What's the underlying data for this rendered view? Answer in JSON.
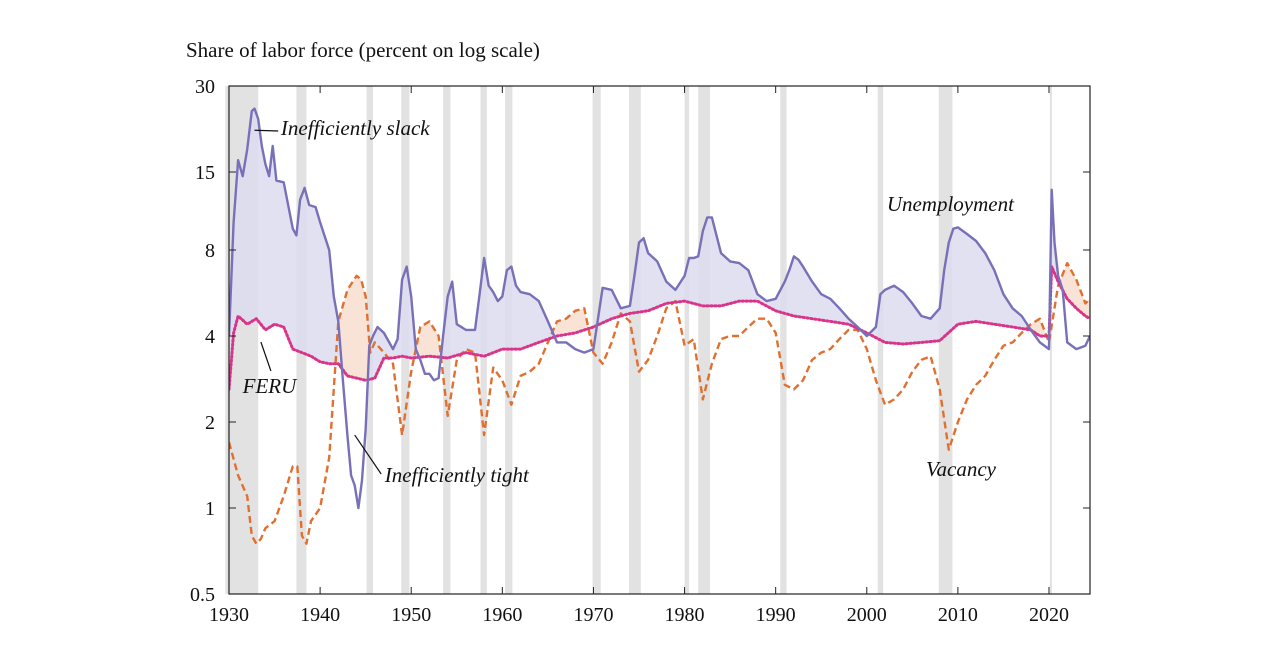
{
  "chart_data": {
    "type": "line",
    "ylabel": "Share of labor force (percent on log scale)",
    "y_scale": "log",
    "ylim": [
      0.5,
      30
    ],
    "xlim": [
      1930,
      2024.5
    ],
    "y_ticks": [
      0.5,
      1,
      2,
      4,
      8,
      15,
      30
    ],
    "x_ticks": [
      1930,
      1940,
      1950,
      1960,
      1970,
      1980,
      1990,
      2000,
      2010,
      2020
    ],
    "recessions": [
      [
        1929.6,
        1933.2
      ],
      [
        1937.4,
        1938.5
      ],
      [
        1945.1,
        1945.8
      ],
      [
        1948.9,
        1949.8
      ],
      [
        1953.5,
        1954.3
      ],
      [
        1957.6,
        1958.3
      ],
      [
        1960.3,
        1961.1
      ],
      [
        1969.9,
        1970.8
      ],
      [
        1973.9,
        1975.2
      ],
      [
        1980.0,
        1980.5
      ],
      [
        1981.5,
        1982.8
      ],
      [
        1990.5,
        1991.2
      ],
      [
        2001.2,
        2001.8
      ],
      [
        2007.9,
        2009.4
      ],
      [
        2020.1,
        2020.3
      ]
    ],
    "annotations": [
      {
        "text": "Inefficiently slack",
        "points_to": [
          1932.8,
          21
        ]
      },
      {
        "text": "Inefficiently tight",
        "points_to": [
          1943.8,
          1.8
        ]
      },
      {
        "text": "FERU",
        "points_to": [
          1933.5,
          4.0
        ]
      },
      {
        "text": "Unemployment",
        "points_to": null
      },
      {
        "text": "Vacancy",
        "points_to": null
      }
    ],
    "series": [
      {
        "name": "Unemployment",
        "color": "#7870b8",
        "style": "solid",
        "x": [
          1930,
          1930.5,
          1931,
          1931.5,
          1932,
          1932.5,
          1932.8,
          1933.2,
          1933.6,
          1934,
          1934.4,
          1934.8,
          1935.2,
          1936,
          1937,
          1937.4,
          1937.8,
          1938.3,
          1938.8,
          1939.5,
          1940,
          1941,
          1941.5,
          1942,
          1942.5,
          1943,
          1943.4,
          1943.8,
          1944.2,
          1944.6,
          1945,
          1945.4,
          1945.8,
          1946.3,
          1947,
          1948,
          1948.5,
          1949,
          1949.5,
          1950,
          1950.5,
          1951,
          1951.5,
          1952,
          1952.5,
          1953,
          1953.5,
          1954,
          1954.5,
          1955,
          1956,
          1957,
          1957.5,
          1958,
          1958.5,
          1959,
          1959.5,
          1960,
          1960.5,
          1961,
          1961.5,
          1962,
          1963,
          1964,
          1965,
          1966,
          1967,
          1968,
          1969,
          1970,
          1970.5,
          1971,
          1972,
          1973,
          1974,
          1974.5,
          1975,
          1975.5,
          1976,
          1977,
          1978,
          1979,
          1980,
          1980.5,
          1981,
          1981.5,
          1982,
          1982.5,
          1983,
          1984,
          1985,
          1986,
          1987,
          1988,
          1989,
          1990,
          1991,
          1991.5,
          1992,
          1992.5,
          1993,
          1994,
          1995,
          1996,
          1997,
          1998,
          1999,
          2000,
          2001,
          2001.5,
          2002,
          2003,
          2004,
          2005,
          2006,
          2007,
          2008,
          2008.5,
          2009,
          2009.5,
          2010,
          2011,
          2012,
          2013,
          2014,
          2015,
          2016,
          2017,
          2018,
          2019,
          2020,
          2020.3,
          2020.6,
          2021,
          2021.5,
          2022,
          2023,
          2024,
          2024.5
        ],
        "y": [
          4.0,
          10.0,
          16.5,
          14.5,
          18.0,
          24.5,
          25.0,
          23.0,
          18.5,
          16.0,
          14.5,
          18.5,
          14.0,
          13.8,
          9.5,
          9.0,
          12.0,
          13.2,
          11.5,
          11.3,
          10.0,
          8.0,
          5.5,
          4.5,
          2.8,
          1.8,
          1.3,
          1.2,
          1.0,
          1.25,
          1.9,
          3.7,
          4.0,
          4.3,
          4.1,
          3.6,
          3.9,
          6.3,
          7.0,
          5.5,
          3.6,
          3.3,
          2.95,
          2.95,
          2.8,
          2.85,
          4.0,
          5.5,
          6.2,
          4.4,
          4.2,
          4.2,
          5.6,
          7.5,
          6.0,
          5.7,
          5.3,
          5.5,
          6.8,
          7.0,
          6.0,
          5.7,
          5.6,
          5.3,
          4.5,
          3.8,
          3.8,
          3.6,
          3.5,
          3.6,
          4.6,
          5.9,
          5.8,
          5.0,
          5.1,
          6.5,
          8.5,
          8.8,
          7.8,
          7.3,
          6.2,
          5.8,
          6.5,
          7.5,
          7.5,
          7.6,
          9.3,
          10.4,
          10.4,
          7.8,
          7.3,
          7.2,
          6.8,
          5.6,
          5.3,
          5.4,
          6.2,
          6.8,
          7.6,
          7.4,
          7.0,
          6.2,
          5.6,
          5.4,
          5.0,
          4.6,
          4.3,
          4.0,
          4.3,
          5.6,
          5.8,
          6.0,
          5.7,
          5.2,
          4.7,
          4.6,
          5.0,
          6.8,
          8.5,
          9.5,
          9.6,
          9.1,
          8.6,
          7.8,
          6.8,
          5.6,
          5.0,
          4.7,
          4.2,
          3.8,
          3.6,
          13.0,
          8.5,
          6.5,
          5.8,
          3.8,
          3.6,
          3.7,
          4.0
        ]
      },
      {
        "name": "FERU",
        "color": "#d8348a",
        "style": "dotted",
        "x": [
          1930,
          1930.5,
          1931,
          1932,
          1933,
          1934,
          1935,
          1936,
          1937,
          1938,
          1939,
          1940,
          1941,
          1942,
          1943,
          1944,
          1945,
          1946,
          1947,
          1948,
          1949,
          1950,
          1952,
          1954,
          1956,
          1958,
          1960,
          1962,
          1964,
          1966,
          1968,
          1970,
          1972,
          1974,
          1976,
          1978,
          1980,
          1982,
          1984,
          1986,
          1988,
          1990,
          1992,
          1994,
          1996,
          1998,
          2000,
          2002,
          2004,
          2006,
          2008,
          2010,
          2012,
          2014,
          2016,
          2018,
          2019,
          2020,
          2020.3,
          2021,
          2022,
          2023,
          2024,
          2024.5
        ],
        "y": [
          2.6,
          4.1,
          4.7,
          4.4,
          4.6,
          4.2,
          4.4,
          4.3,
          3.6,
          3.5,
          3.4,
          3.25,
          3.2,
          3.2,
          2.9,
          2.85,
          2.8,
          2.85,
          3.35,
          3.35,
          3.4,
          3.35,
          3.4,
          3.35,
          3.5,
          3.4,
          3.6,
          3.6,
          3.8,
          4.0,
          4.1,
          4.3,
          4.6,
          4.8,
          4.9,
          5.2,
          5.3,
          5.1,
          5.1,
          5.3,
          5.3,
          4.9,
          4.7,
          4.6,
          4.5,
          4.4,
          4.1,
          3.8,
          3.75,
          3.8,
          3.85,
          4.4,
          4.5,
          4.4,
          4.3,
          4.2,
          4.0,
          4.0,
          7.0,
          6.2,
          5.4,
          5.0,
          4.7,
          4.6
        ]
      },
      {
        "name": "Vacancy",
        "color": "#e07030",
        "style": "dashed",
        "x": [
          1930,
          1931,
          1932,
          1932.5,
          1933,
          1933.5,
          1934,
          1935,
          1936,
          1937,
          1937.5,
          1938,
          1938.5,
          1939,
          1940,
          1941,
          1942,
          1943,
          1944,
          1944.5,
          1945,
          1945.5,
          1946,
          1947,
          1948,
          1949,
          1950,
          1951,
          1952,
          1953,
          1954,
          1955,
          1956,
          1957,
          1958,
          1959,
          1960,
          1961,
          1962,
          1963,
          1964,
          1965,
          1966,
          1967,
          1968,
          1969,
          1970,
          1971,
          1972,
          1973,
          1974,
          1975,
          1976,
          1977,
          1978,
          1979,
          1980,
          1981,
          1982,
          1983,
          1984,
          1985,
          1986,
          1987,
          1988,
          1989,
          1990,
          1991,
          1992,
          1993,
          1994,
          1995,
          1996,
          1997,
          1998,
          1999,
          2000,
          2001,
          2002,
          2003,
          2004,
          2005,
          2006,
          2007,
          2008,
          2009,
          2010,
          2011,
          2012,
          2013,
          2014,
          2015,
          2016,
          2017,
          2018,
          2019,
          2020,
          2021,
          2022,
          2023,
          2024,
          2024.5
        ],
        "y": [
          1.7,
          1.3,
          1.1,
          0.8,
          0.75,
          0.78,
          0.85,
          0.9,
          1.1,
          1.4,
          1.4,
          0.8,
          0.75,
          0.9,
          1.0,
          1.5,
          4.5,
          5.8,
          6.5,
          6.3,
          5.5,
          3.5,
          3.8,
          3.5,
          3.2,
          1.8,
          3.0,
          4.3,
          4.5,
          4.0,
          2.1,
          3.3,
          3.6,
          3.5,
          1.8,
          3.1,
          2.8,
          2.3,
          2.9,
          3.0,
          3.2,
          3.8,
          4.5,
          4.6,
          4.9,
          5.0,
          3.5,
          3.2,
          3.8,
          4.8,
          4.5,
          3.0,
          3.3,
          4.0,
          5.0,
          5.3,
          3.7,
          3.9,
          2.4,
          3.2,
          3.9,
          4.0,
          4.0,
          4.3,
          4.6,
          4.6,
          4.1,
          2.7,
          2.6,
          2.8,
          3.3,
          3.5,
          3.6,
          3.9,
          4.2,
          4.2,
          3.6,
          2.8,
          2.3,
          2.4,
          2.6,
          3.0,
          3.3,
          3.4,
          2.6,
          1.6,
          2.0,
          2.4,
          2.7,
          2.9,
          3.3,
          3.7,
          3.8,
          4.1,
          4.4,
          4.6,
          3.8,
          6.0,
          7.2,
          6.3,
          5.2,
          5.4
        ]
      }
    ]
  }
}
